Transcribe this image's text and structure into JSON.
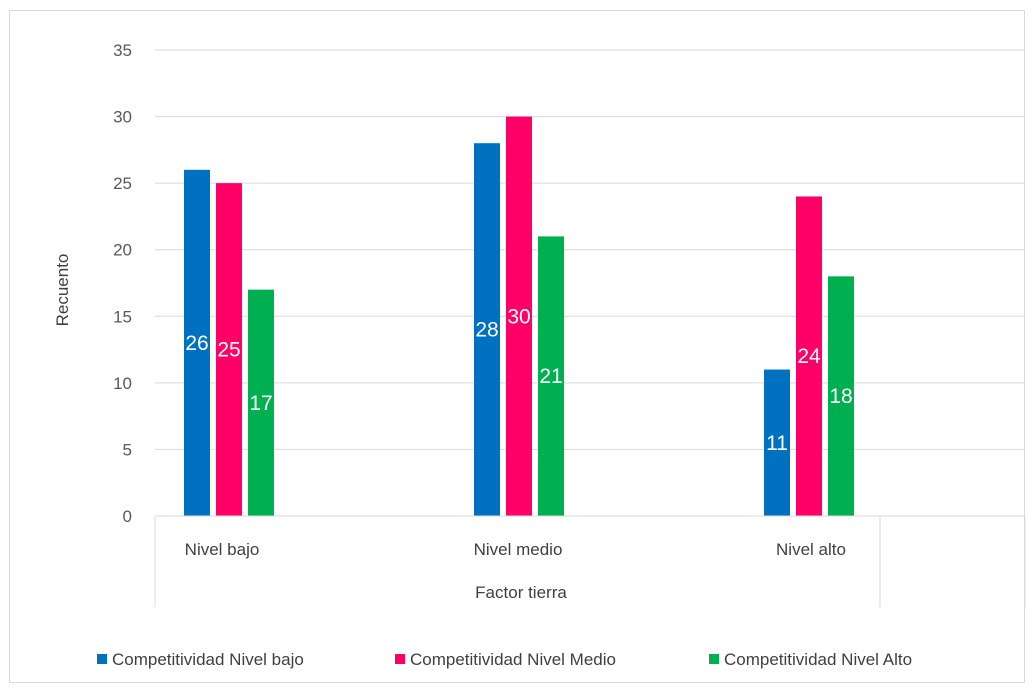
{
  "chart_data": {
    "type": "bar",
    "title": "",
    "xlabel": "Factor tierra",
    "ylabel": "Recuento",
    "ylim": [
      0,
      35
    ],
    "ytick_step": 5,
    "categories": [
      "Nivel bajo",
      "Nivel medio",
      "Nivel alto"
    ],
    "grid": true,
    "legend_position": "bottom",
    "series": [
      {
        "name": "Competitividad Nivel bajo",
        "values": [
          26,
          28,
          11
        ],
        "color": "#0070c0"
      },
      {
        "name": "Competitividad Nivel Medio",
        "values": [
          25,
          30,
          24
        ],
        "color": "#ff0066"
      },
      {
        "name": "Competitividad Nivel Alto",
        "values": [
          17,
          21,
          18
        ],
        "color": "#00b050"
      }
    ]
  }
}
